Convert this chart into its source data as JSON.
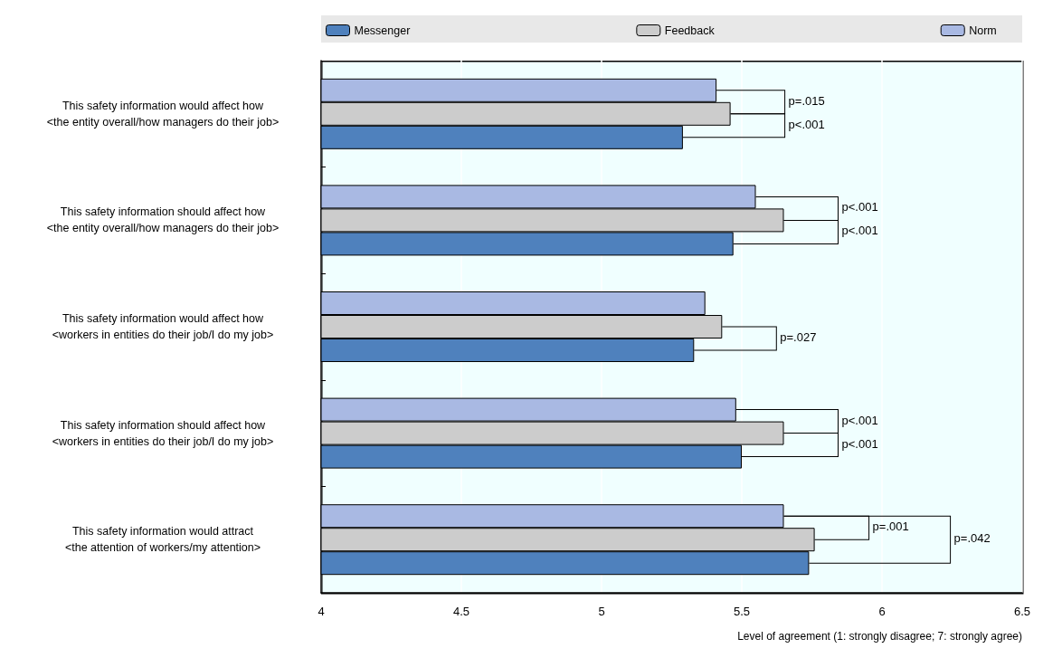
{
  "chart_data": {
    "type": "bar",
    "orientation": "horizontal",
    "xlabel": "Level of agreement (1: strongly disagree; 7: strongly agree)",
    "categories": [
      "This safety information would affect how\n<the entity overall/how managers do their job>",
      "This safety information should affect how\n<the entity overall/how managers do their job>",
      "This safety information would affect how\n<workers in entities do their job/I do my job>",
      "This safety information should affect how\n<workers in entities do their job/I do my job>",
      "This safety information would attract\n<the attention of workers/my attention>"
    ],
    "series": [
      {
        "name": "Messenger",
        "color": "#4f81bd",
        "values": [
          5.29,
          5.47,
          5.33,
          5.5,
          5.74
        ]
      },
      {
        "name": "Feedback",
        "color": "#cccccc",
        "values": [
          5.46,
          5.65,
          5.43,
          5.65,
          5.76
        ]
      },
      {
        "name": "Norm",
        "color": "#a9b9e3",
        "values": [
          5.41,
          5.55,
          5.37,
          5.48,
          5.65
        ]
      }
    ],
    "xlim": [
      4,
      6.5
    ],
    "xticks": [
      4,
      4.5,
      5,
      5.5,
      6,
      6.5
    ],
    "grid": "x",
    "legend": "top",
    "annotations": [
      "p=.015",
      "p<.001",
      "p<.001",
      "p<.001",
      "p=.027",
      "p<.001",
      "p<.001",
      "p=.001",
      "p=.042"
    ]
  }
}
